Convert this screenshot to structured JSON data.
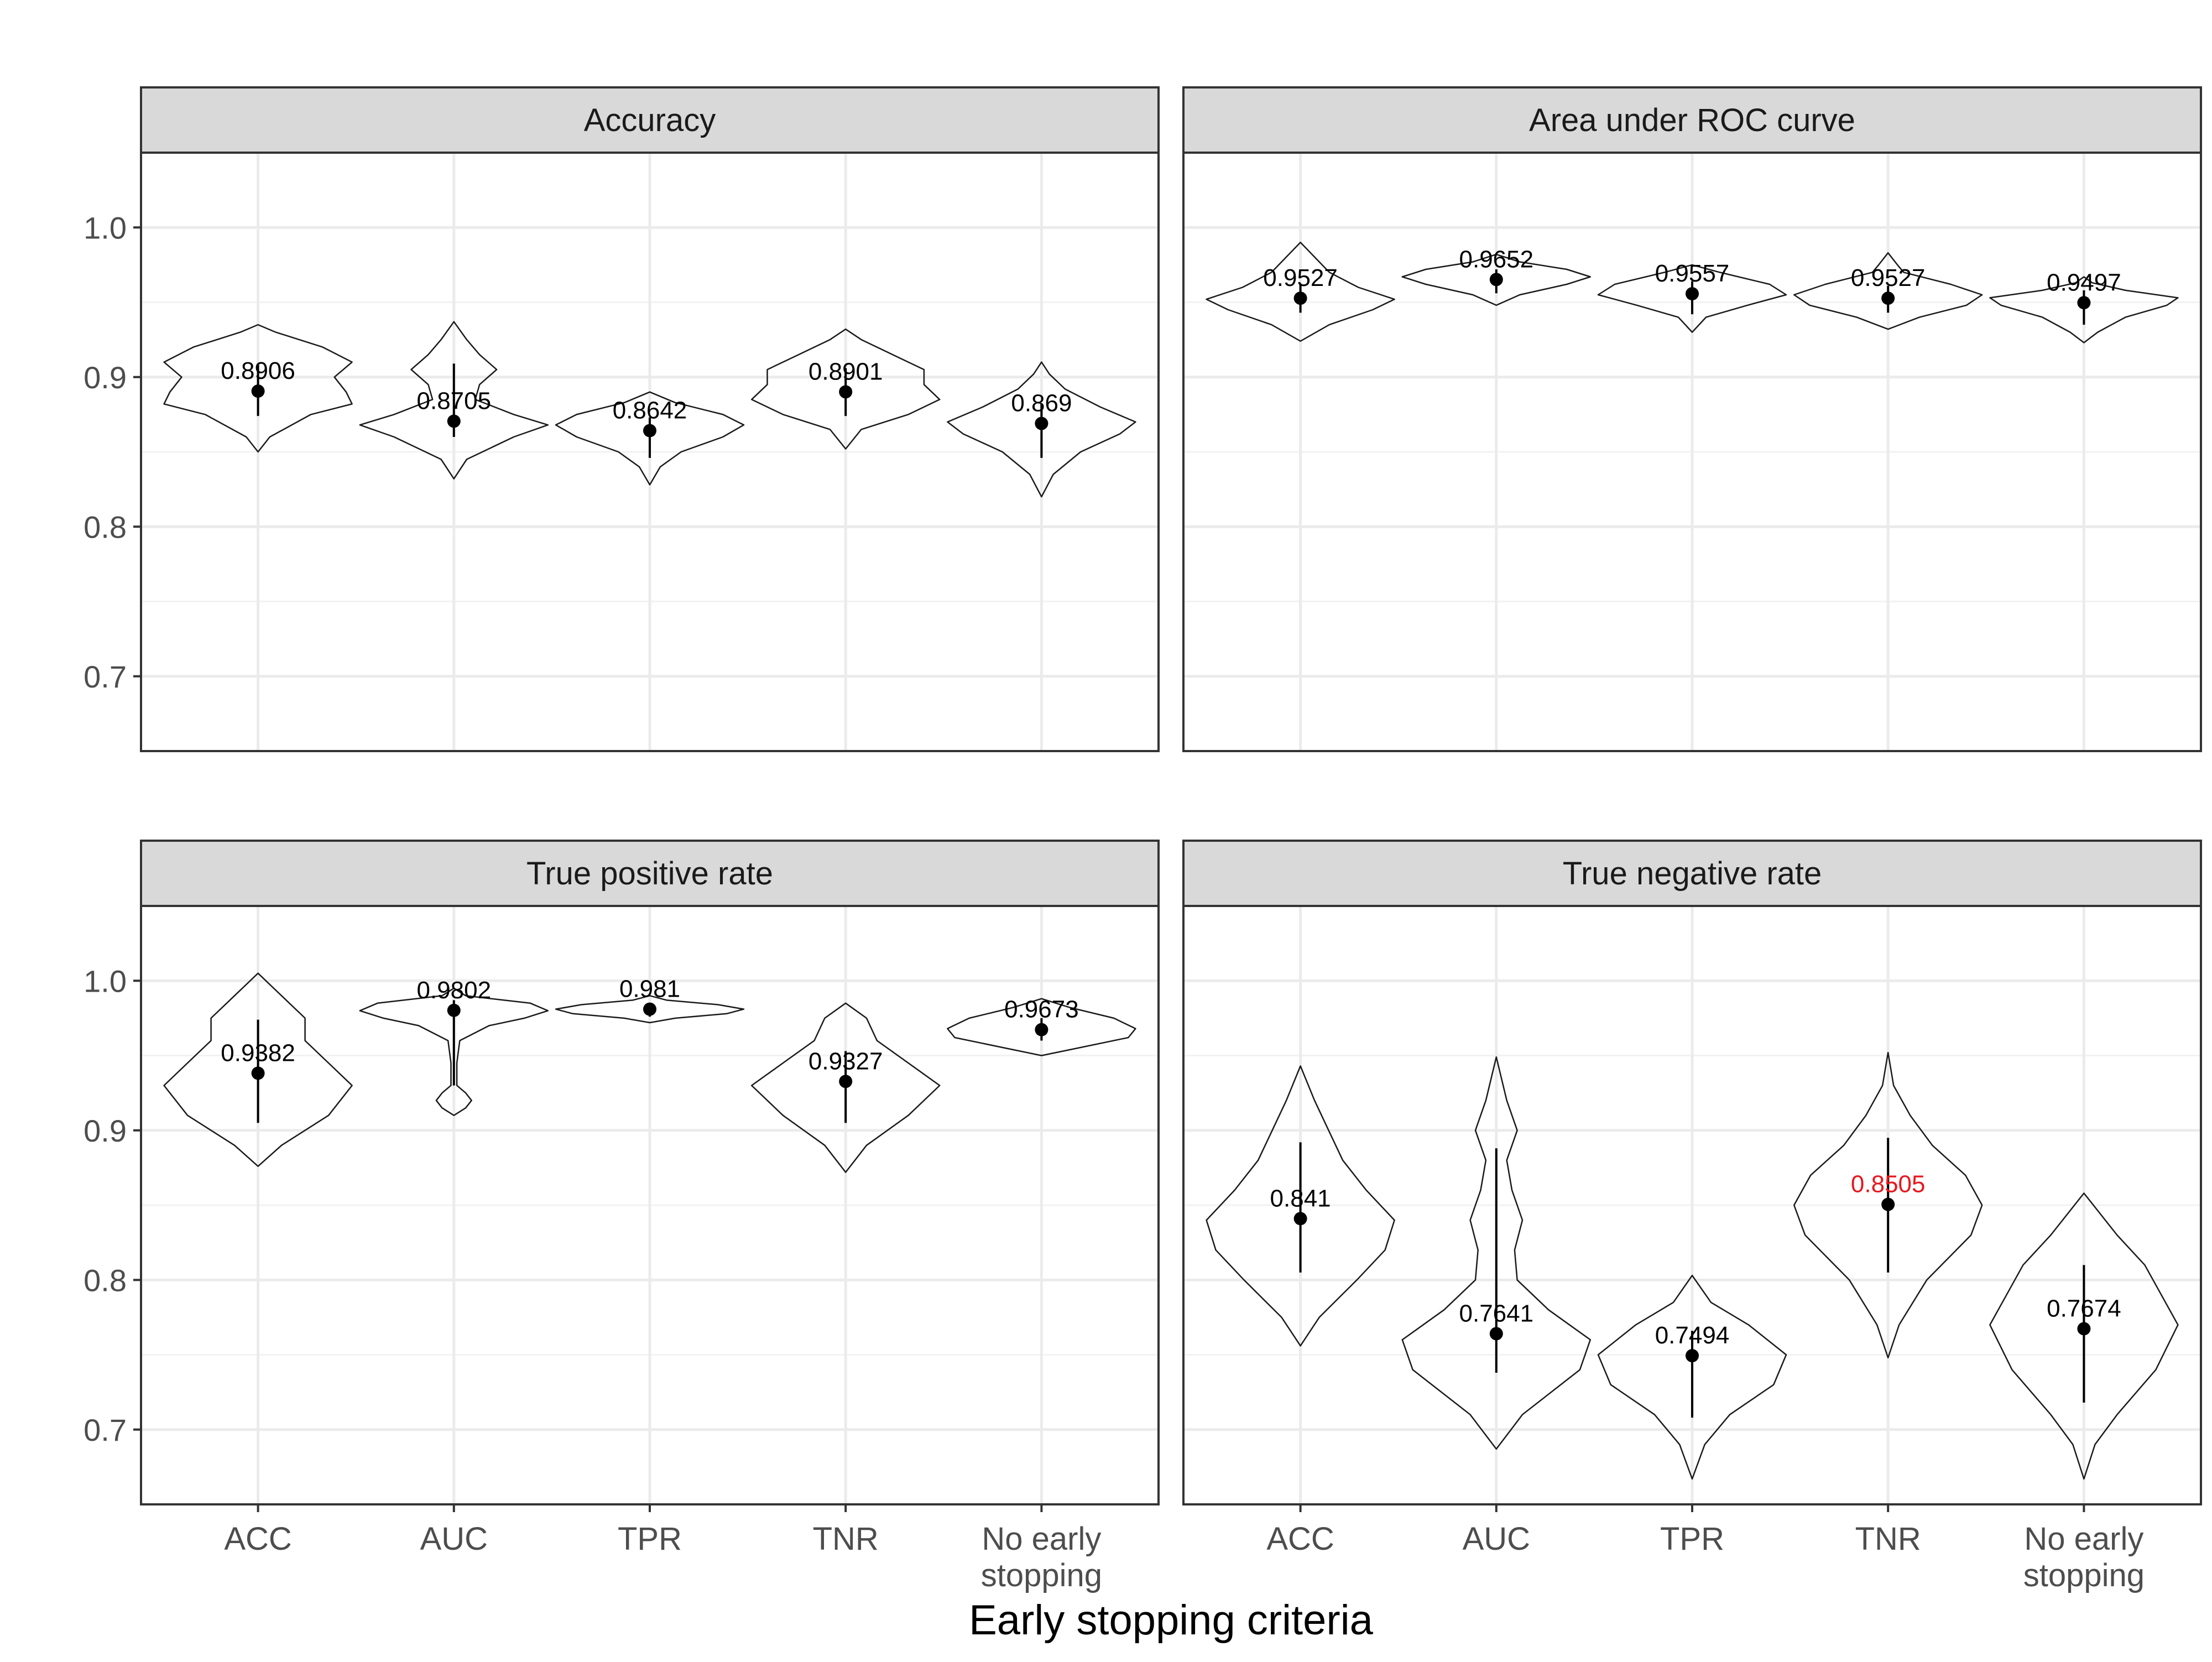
{
  "chart_data": {
    "type": "violin",
    "xlabel": "Early stopping criteria",
    "ylabel": "",
    "ylim": [
      0.65,
      1.05
    ],
    "yticks": [
      "0.7",
      "0.8",
      "0.9",
      "1.0"
    ],
    "grid": true,
    "categories": [
      "ACC",
      "AUC",
      "TPR",
      "TNR",
      "No early stopping"
    ],
    "category_lines": [
      [
        "ACC"
      ],
      [
        "AUC"
      ],
      [
        "TPR"
      ],
      [
        "TNR"
      ],
      [
        "No early",
        "stopping"
      ]
    ],
    "highlight_color": "#e8171d",
    "panels": [
      {
        "title": "Accuracy",
        "labels": [
          "0.8906",
          "0.8705",
          "0.8642",
          "0.8901",
          "0.869"
        ],
        "highlight": [
          false,
          false,
          false,
          false,
          false
        ],
        "points": [
          0.8906,
          0.8705,
          0.8642,
          0.8901,
          0.869
        ],
        "ranges": [
          [
            0.874,
            0.908
          ],
          [
            0.86,
            0.909
          ],
          [
            0.846,
            0.873
          ],
          [
            0.874,
            0.906
          ],
          [
            0.846,
            0.882
          ]
        ],
        "violins": [
          [
            [
              0.85,
              0.0
            ],
            [
              0.86,
              0.02
            ],
            [
              0.875,
              0.09
            ],
            [
              0.882,
              0.16
            ],
            [
              0.89,
              0.15
            ],
            [
              0.9,
              0.13
            ],
            [
              0.91,
              0.16
            ],
            [
              0.92,
              0.11
            ],
            [
              0.93,
              0.03
            ],
            [
              0.935,
              0.0
            ]
          ],
          [
            [
              0.832,
              0.0
            ],
            [
              0.845,
              0.03
            ],
            [
              0.86,
              0.14
            ],
            [
              0.868,
              0.22
            ],
            [
              0.875,
              0.14
            ],
            [
              0.885,
              0.05
            ],
            [
              0.895,
              0.06
            ],
            [
              0.905,
              0.1
            ],
            [
              0.915,
              0.06
            ],
            [
              0.925,
              0.03
            ],
            [
              0.937,
              0.0
            ]
          ],
          [
            [
              0.828,
              0.0
            ],
            [
              0.84,
              0.05
            ],
            [
              0.85,
              0.15
            ],
            [
              0.86,
              0.35
            ],
            [
              0.868,
              0.45
            ],
            [
              0.875,
              0.35
            ],
            [
              0.883,
              0.12
            ],
            [
              0.89,
              0.0
            ]
          ],
          [
            [
              0.852,
              0.0
            ],
            [
              0.865,
              0.03
            ],
            [
              0.875,
              0.12
            ],
            [
              0.885,
              0.18
            ],
            [
              0.895,
              0.15
            ],
            [
              0.905,
              0.15
            ],
            [
              0.915,
              0.09
            ],
            [
              0.925,
              0.03
            ],
            [
              0.932,
              0.0
            ]
          ],
          [
            [
              0.82,
              0.0
            ],
            [
              0.835,
              0.03
            ],
            [
              0.85,
              0.1
            ],
            [
              0.862,
              0.2
            ],
            [
              0.87,
              0.24
            ],
            [
              0.88,
              0.15
            ],
            [
              0.892,
              0.06
            ],
            [
              0.902,
              0.02
            ],
            [
              0.91,
              0.0
            ]
          ]
        ]
      },
      {
        "title": "Area under ROC curve",
        "labels": [
          "0.9527",
          "0.9652",
          "0.9557",
          "0.9527",
          "0.9497"
        ],
        "highlight": [
          false,
          false,
          false,
          false,
          false
        ],
        "points": [
          0.9527,
          0.9652,
          0.9557,
          0.9527,
          0.9497
        ],
        "ranges": [
          [
            0.943,
            0.962
          ],
          [
            0.956,
            0.972
          ],
          [
            0.942,
            0.964
          ],
          [
            0.943,
            0.961
          ],
          [
            0.935,
            0.958
          ]
        ],
        "violins": [
          [
            [
              0.924,
              0.0
            ],
            [
              0.935,
              0.04
            ],
            [
              0.945,
              0.1
            ],
            [
              0.952,
              0.13
            ],
            [
              0.96,
              0.08
            ],
            [
              0.97,
              0.04
            ],
            [
              0.98,
              0.02
            ],
            [
              0.99,
              0.0
            ]
          ],
          [
            [
              0.948,
              0.0
            ],
            [
              0.955,
              0.1
            ],
            [
              0.962,
              0.3
            ],
            [
              0.967,
              0.4
            ],
            [
              0.972,
              0.3
            ],
            [
              0.977,
              0.1
            ],
            [
              0.982,
              0.0
            ]
          ],
          [
            [
              0.93,
              0.0
            ],
            [
              0.94,
              0.05
            ],
            [
              0.948,
              0.2
            ],
            [
              0.955,
              0.34
            ],
            [
              0.962,
              0.28
            ],
            [
              0.97,
              0.1
            ],
            [
              0.975,
              0.0
            ]
          ],
          [
            [
              0.932,
              0.0
            ],
            [
              0.94,
              0.1
            ],
            [
              0.948,
              0.25
            ],
            [
              0.955,
              0.3
            ],
            [
              0.962,
              0.2
            ],
            [
              0.97,
              0.05
            ],
            [
              0.975,
              0.03
            ],
            [
              0.983,
              0.0
            ]
          ],
          [
            [
              0.923,
              0.0
            ],
            [
              0.93,
              0.05
            ],
            [
              0.94,
              0.15
            ],
            [
              0.948,
              0.3
            ],
            [
              0.953,
              0.34
            ],
            [
              0.958,
              0.15
            ],
            [
              0.963,
              0.03
            ],
            [
              0.967,
              0.0
            ]
          ]
        ]
      },
      {
        "title": "True positive rate",
        "labels": [
          "0.9382",
          "0.9802",
          "0.981",
          "0.9327",
          "0.9673"
        ],
        "highlight": [
          false,
          false,
          false,
          false,
          false
        ],
        "points": [
          0.9382,
          0.9802,
          0.981,
          0.9327,
          0.9673
        ],
        "ranges": [
          [
            0.905,
            0.974
          ],
          [
            0.93,
            0.987
          ],
          [
            0.976,
            0.985
          ],
          [
            0.905,
            0.953
          ],
          [
            0.96,
            0.975
          ]
        ],
        "violins": [
          [
            [
              0.876,
              0.0
            ],
            [
              0.89,
              0.01
            ],
            [
              0.91,
              0.03
            ],
            [
              0.93,
              0.04
            ],
            [
              0.945,
              0.03
            ],
            [
              0.96,
              0.02
            ],
            [
              0.975,
              0.02
            ],
            [
              0.99,
              0.01
            ],
            [
              1.005,
              0.0
            ]
          ],
          [
            [
              0.91,
              0.0
            ],
            [
              0.915,
              0.02
            ],
            [
              0.92,
              0.03
            ],
            [
              0.925,
              0.02
            ],
            [
              0.93,
              0.005
            ],
            [
              0.945,
              0.005
            ],
            [
              0.96,
              0.01
            ],
            [
              0.97,
              0.06
            ],
            [
              0.975,
              0.12
            ],
            [
              0.98,
              0.16
            ],
            [
              0.985,
              0.13
            ],
            [
              0.99,
              0.02
            ],
            [
              0.995,
              0.0
            ]
          ],
          [
            [
              0.972,
              0.0
            ],
            [
              0.975,
              0.15
            ],
            [
              0.978,
              0.45
            ],
            [
              0.981,
              0.55
            ],
            [
              0.984,
              0.4
            ],
            [
              0.987,
              0.1
            ],
            [
              0.99,
              0.0
            ]
          ],
          [
            [
              0.872,
              0.0
            ],
            [
              0.89,
              0.01
            ],
            [
              0.91,
              0.03
            ],
            [
              0.93,
              0.045
            ],
            [
              0.945,
              0.03
            ],
            [
              0.96,
              0.015
            ],
            [
              0.975,
              0.01
            ],
            [
              0.985,
              0.0
            ]
          ],
          [
            [
              0.95,
              0.0
            ],
            [
              0.955,
              0.05
            ],
            [
              0.962,
              0.12
            ],
            [
              0.968,
              0.13
            ],
            [
              0.975,
              0.1
            ],
            [
              0.982,
              0.04
            ],
            [
              0.988,
              0.0
            ]
          ]
        ]
      },
      {
        "title": "True negative rate",
        "labels": [
          "0.841",
          "0.7641",
          "0.7494",
          "0.8505",
          "0.7674"
        ],
        "highlight": [
          false,
          false,
          false,
          true,
          false
        ],
        "points": [
          0.841,
          0.7641,
          0.7494,
          0.8505,
          0.7674
        ],
        "ranges": [
          [
            0.805,
            0.892
          ],
          [
            0.738,
            0.888
          ],
          [
            0.708,
            0.766
          ],
          [
            0.805,
            0.895
          ],
          [
            0.718,
            0.81
          ]
        ],
        "violins": [
          [
            [
              0.756,
              0.0
            ],
            [
              0.775,
              0.04
            ],
            [
              0.8,
              0.12
            ],
            [
              0.82,
              0.18
            ],
            [
              0.84,
              0.2
            ],
            [
              0.86,
              0.14
            ],
            [
              0.88,
              0.09
            ],
            [
              0.9,
              0.06
            ],
            [
              0.92,
              0.03
            ],
            [
              0.943,
              0.0
            ]
          ],
          [
            [
              0.687,
              0.0
            ],
            [
              0.71,
              0.05
            ],
            [
              0.74,
              0.16
            ],
            [
              0.76,
              0.18
            ],
            [
              0.78,
              0.1
            ],
            [
              0.8,
              0.04
            ],
            [
              0.82,
              0.035
            ],
            [
              0.84,
              0.05
            ],
            [
              0.86,
              0.03
            ],
            [
              0.88,
              0.02
            ],
            [
              0.9,
              0.04
            ],
            [
              0.92,
              0.02
            ],
            [
              0.949,
              0.0
            ]
          ],
          [
            [
              0.667,
              0.0
            ],
            [
              0.69,
              0.04
            ],
            [
              0.71,
              0.12
            ],
            [
              0.73,
              0.26
            ],
            [
              0.75,
              0.3
            ],
            [
              0.77,
              0.18
            ],
            [
              0.785,
              0.06
            ],
            [
              0.803,
              0.0
            ]
          ],
          [
            [
              0.748,
              0.0
            ],
            [
              0.77,
              0.02
            ],
            [
              0.8,
              0.07
            ],
            [
              0.83,
              0.15
            ],
            [
              0.85,
              0.17
            ],
            [
              0.87,
              0.14
            ],
            [
              0.89,
              0.08
            ],
            [
              0.91,
              0.04
            ],
            [
              0.93,
              0.01
            ],
            [
              0.952,
              0.0
            ]
          ],
          [
            [
              0.667,
              0.0
            ],
            [
              0.69,
              0.02
            ],
            [
              0.71,
              0.06
            ],
            [
              0.74,
              0.13
            ],
            [
              0.77,
              0.17
            ],
            [
              0.79,
              0.14
            ],
            [
              0.81,
              0.11
            ],
            [
              0.83,
              0.06
            ],
            [
              0.858,
              0.0
            ]
          ]
        ]
      }
    ]
  }
}
